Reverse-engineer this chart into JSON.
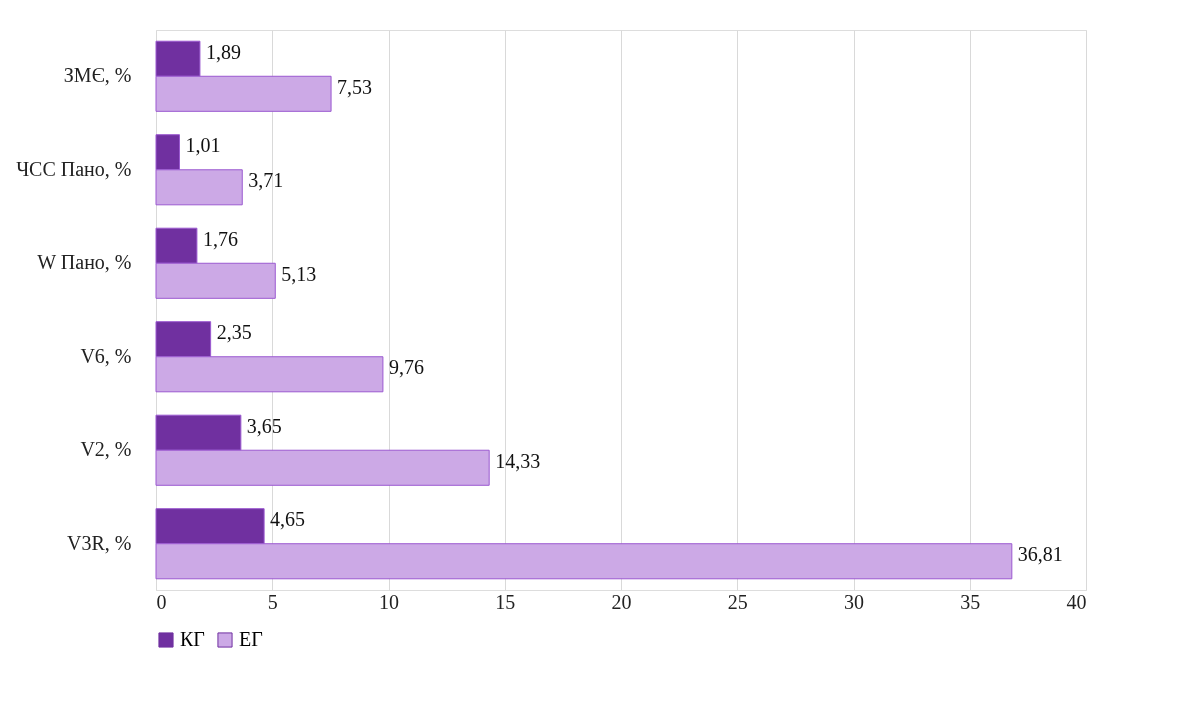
{
  "chart_data": {
    "type": "bar",
    "orientation": "horizontal",
    "categories": [
      "ЗМЄ, %",
      "ЧСС Пано, %",
      "W Пано, %",
      "V6,  %",
      "V2, %",
      "V3R, %"
    ],
    "series": [
      {
        "name": "КГ",
        "color": "#7030a0",
        "values": [
          1.89,
          1.01,
          1.76,
          2.35,
          3.65,
          4.65
        ],
        "value_labels": [
          "1,89",
          "1,01",
          "1,76",
          "2,35",
          "3,65",
          "4,65"
        ]
      },
      {
        "name": "ЕГ",
        "color": "#cca9e6",
        "values": [
          7.53,
          3.71,
          5.13,
          9.76,
          14.33,
          36.81
        ],
        "value_labels": [
          "7,53",
          "3,71",
          "5,13",
          "9,76",
          "14,33",
          "36,81"
        ]
      }
    ],
    "xlim": [
      0,
      40
    ],
    "xticks": [
      0,
      5,
      10,
      15,
      20,
      25,
      30,
      35,
      40
    ],
    "grid": "x",
    "legend": "bottom"
  }
}
